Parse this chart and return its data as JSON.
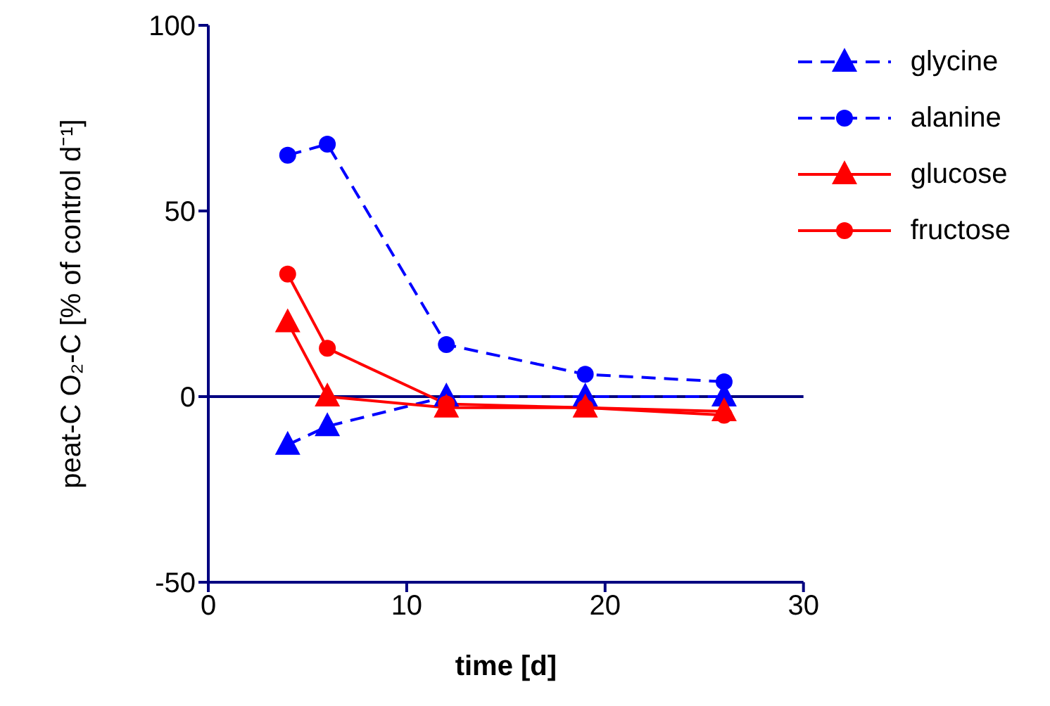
{
  "chart_data": {
    "type": "line",
    "xlabel": "time [d]",
    "ylabel": "peat-C O₂-C [% of control d⁻¹]",
    "x": [
      4,
      6,
      12,
      19,
      26
    ],
    "series": [
      {
        "name": "glycine",
        "color": "#0000ff",
        "values": [
          -13,
          -8,
          0,
          0,
          0
        ],
        "marker": "triangle",
        "line_style": "dashed"
      },
      {
        "name": "alanine",
        "color": "#0000ff",
        "values": [
          65,
          68,
          14,
          6,
          4
        ],
        "marker": "circle",
        "line_style": "dashed"
      },
      {
        "name": "glucose",
        "color": "#ff0000",
        "values": [
          20,
          0,
          -3,
          -3,
          -4
        ],
        "marker": "triangle",
        "line_style": "solid"
      },
      {
        "name": "fructose",
        "color": "#ff0000",
        "values": [
          33,
          13,
          -2,
          -3,
          -5
        ],
        "marker": "circle",
        "line_style": "solid"
      }
    ],
    "xlim": [
      0,
      30
    ],
    "xticks": [
      0,
      10,
      20,
      30
    ],
    "ylim": [
      -50,
      100
    ],
    "yticks": [
      -50,
      0,
      50,
      100
    ],
    "ref_lines": [
      {
        "axis": "y",
        "value": 0,
        "color": "#000080"
      }
    ],
    "grid": false,
    "legend": "top right"
  }
}
